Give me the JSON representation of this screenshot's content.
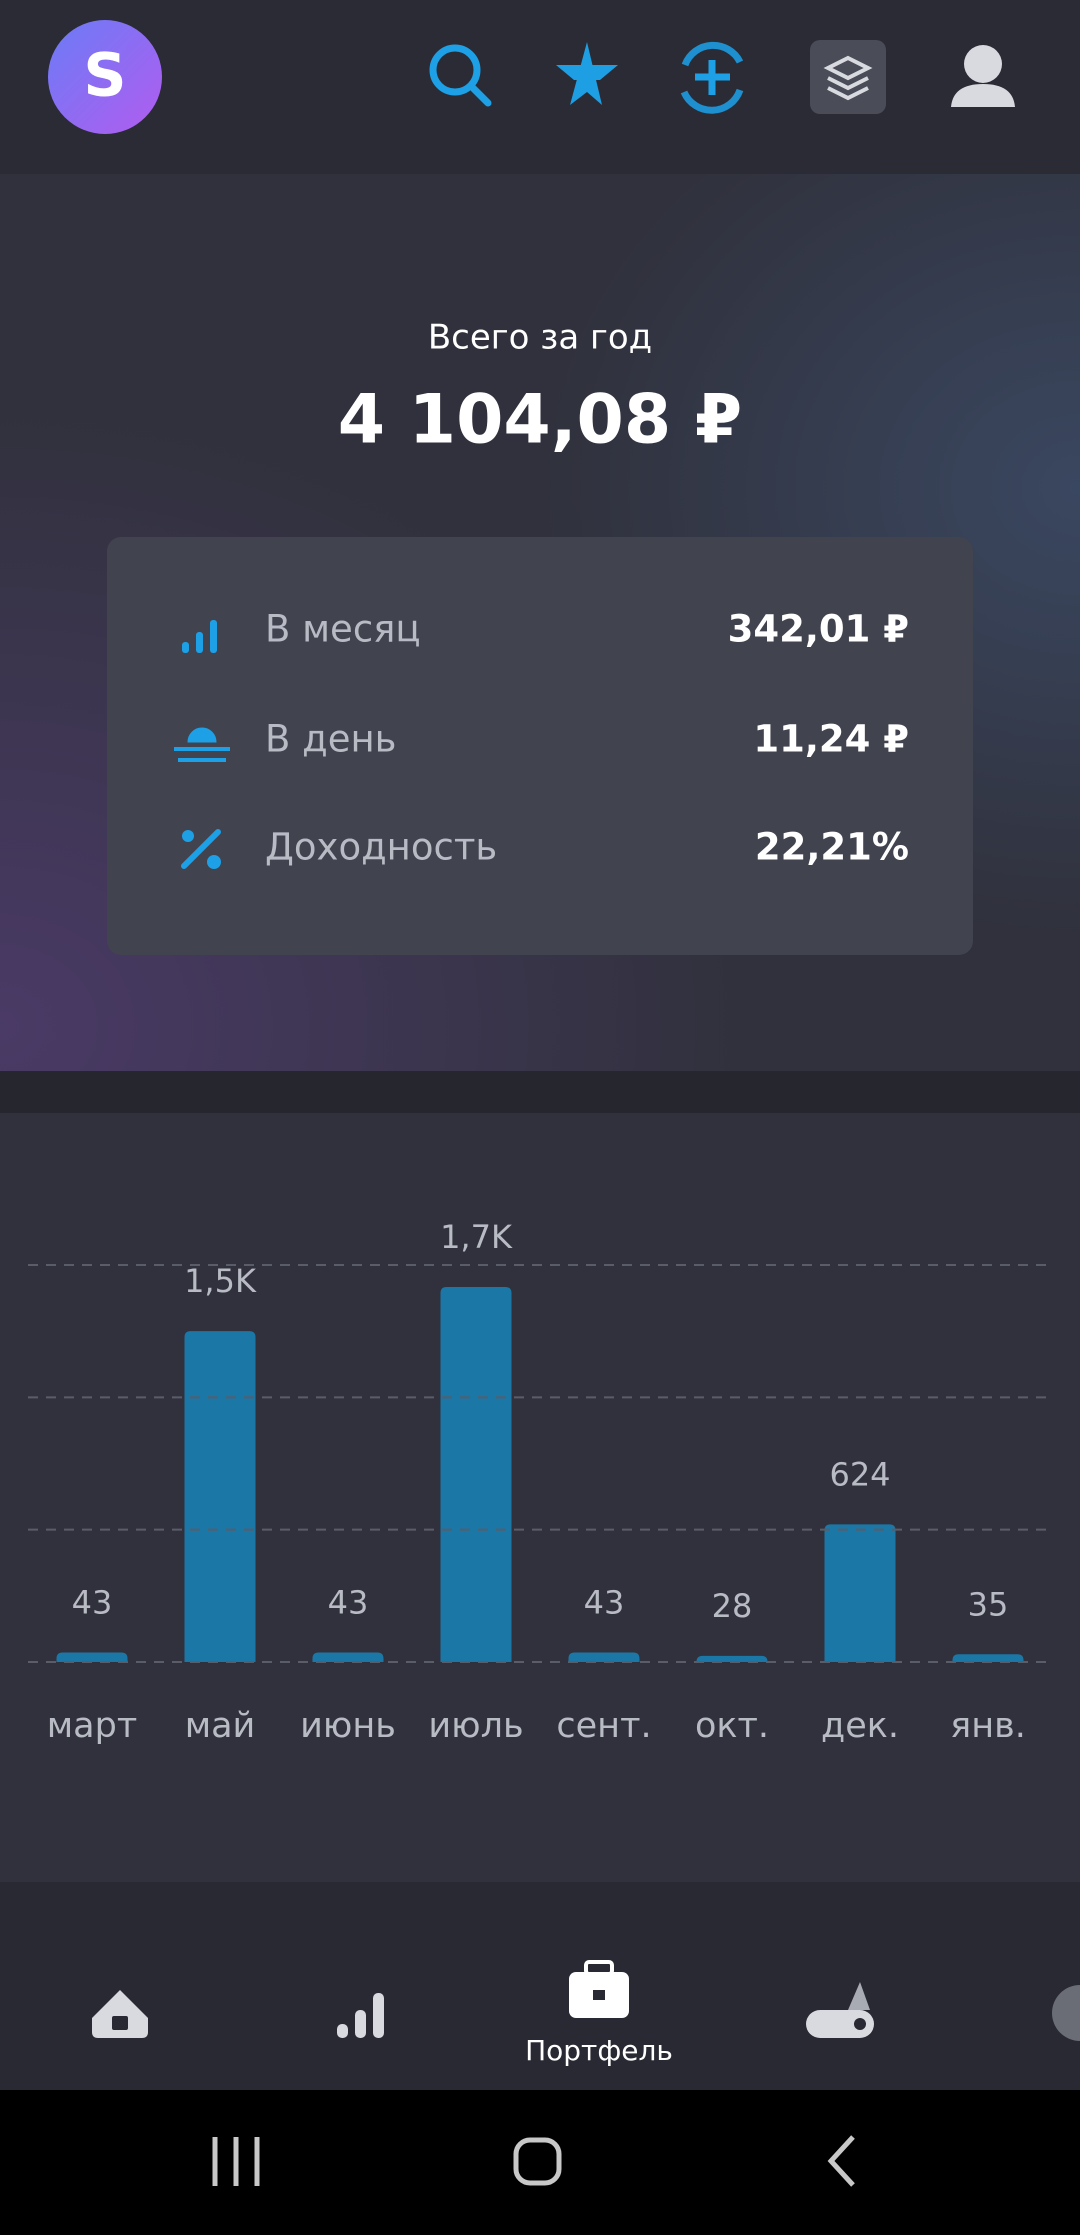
{
  "header": {
    "logo": "S"
  },
  "summary": {
    "title": "Всего за год",
    "amount": "4 104,08 ₽",
    "rows": [
      {
        "label": "В месяц",
        "value": "342,01 ₽"
      },
      {
        "label": "В день",
        "value": "11,24 ₽"
      },
      {
        "label": "Доходность",
        "value": "22,21%"
      }
    ]
  },
  "chart_data": {
    "type": "bar",
    "categories": [
      "март",
      "май",
      "июнь",
      "июль",
      "сент.",
      "окт.",
      "дек.",
      "янв."
    ],
    "values": [
      43,
      1500,
      43,
      1700,
      43,
      28,
      624,
      35
    ],
    "value_labels": [
      "43",
      "1,5K",
      "43",
      "1,7K",
      "43",
      "28",
      "624",
      "35"
    ],
    "color": "#1b77a6",
    "ylim": [
      0,
      1800
    ],
    "yticks": [
      0,
      600,
      1200,
      1800
    ],
    "grid": true
  },
  "nav": {
    "active_label": "Портфель"
  }
}
